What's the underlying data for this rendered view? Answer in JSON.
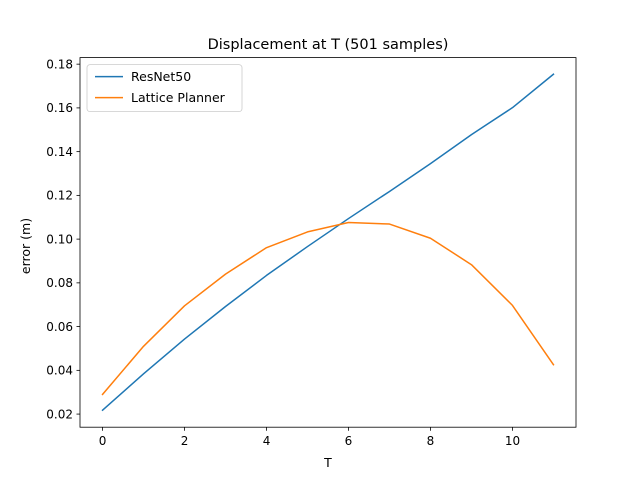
{
  "chart_data": {
    "type": "line",
    "title": "Displacement at T (501 samples)",
    "xlabel": "T",
    "ylabel": "error (m)",
    "xlim": [
      -0.55,
      11.55
    ],
    "ylim": [
      0.014,
      0.183
    ],
    "xticks": [
      0,
      2,
      4,
      6,
      8,
      10
    ],
    "yticks": [
      0.02,
      0.04,
      0.06,
      0.08,
      0.1,
      0.12,
      0.14,
      0.16,
      0.18
    ],
    "xtick_labels": [
      "0",
      "2",
      "4",
      "6",
      "8",
      "10"
    ],
    "ytick_labels": [
      "0.02",
      "0.04",
      "0.06",
      "0.08",
      "0.10",
      "0.12",
      "0.14",
      "0.16",
      "0.18"
    ],
    "grid": false,
    "legend_position": "top-left",
    "x": [
      0,
      1,
      2,
      3,
      4,
      5,
      6,
      7,
      8,
      9,
      10,
      11
    ],
    "series": [
      {
        "name": "ResNet50",
        "color": "#1f77b4",
        "values": [
          0.0218,
          0.0384,
          0.0543,
          0.0692,
          0.0834,
          0.0966,
          0.1094,
          0.1218,
          0.1345,
          0.1478,
          0.1601,
          0.1754
        ]
      },
      {
        "name": "Lattice Planner",
        "color": "#ff7f0e",
        "values": [
          0.029,
          0.051,
          0.0695,
          0.084,
          0.0961,
          0.1033,
          0.1076,
          0.1069,
          0.1004,
          0.0883,
          0.0697,
          0.0426
        ]
      }
    ]
  }
}
